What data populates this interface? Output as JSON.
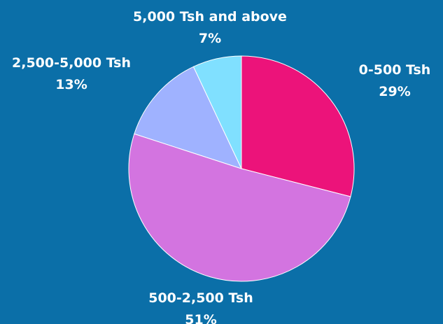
{
  "colors": {
    "background": "#0b6fa8",
    "label": "#ffffff"
  },
  "chart_data": {
    "type": "pie",
    "title": "",
    "start_angle_deg": 0,
    "direction": "clockwise",
    "slices": [
      {
        "label": "0-500 Tsh",
        "value": 29,
        "value_label": "29%",
        "color": "#ec137a"
      },
      {
        "label": "500-2,500 Tsh",
        "value": 51,
        "value_label": "51%",
        "color": "#d374e0"
      },
      {
        "label": "2,500-5,000 Tsh",
        "value": 13,
        "value_label": "13%",
        "color": "#9fb2ff"
      },
      {
        "label": "5,000 Tsh and above",
        "value": 7,
        "value_label": "7%",
        "color": "#80e0ff"
      }
    ],
    "legend": "none",
    "grid": false
  }
}
